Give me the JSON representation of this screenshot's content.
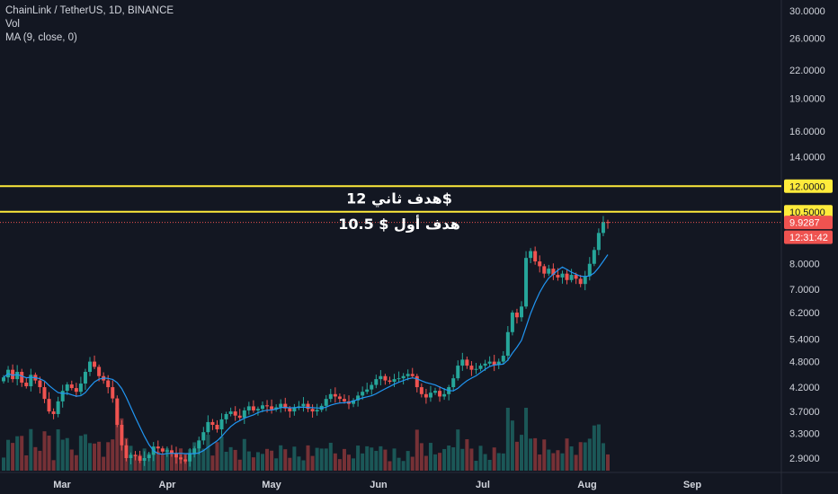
{
  "header": {
    "title": "ChainLink / TetherUS, 1D, BINANCE",
    "volume_label": "Vol",
    "ma_label": "MA (9, close, 0)"
  },
  "chart_data": {
    "type": "candlestick",
    "symbol": "ChainLink / TetherUS",
    "interval": "1D",
    "exchange": "BINANCE",
    "y_scale": "log",
    "ylim": [
      2.65,
      32.5
    ],
    "y_ticks": [
      "30.0000",
      "26.0000",
      "22.0000",
      "19.0000",
      "16.0000",
      "14.0000",
      "12.0000",
      "10.5000",
      "8.0000",
      "7.0000",
      "6.2000",
      "5.4000",
      "4.8000",
      "4.2000",
      "3.7000",
      "3.3000",
      "2.9000"
    ],
    "x_ticks": [
      "Mar",
      "Apr",
      "May",
      "Jun",
      "Jul",
      "Aug",
      "Sep"
    ],
    "last_price": "9.9287",
    "countdown": "12:31:42",
    "levels": [
      {
        "price": 12.0,
        "label": "12.0000",
        "annotation": "هدف ثاني 12$",
        "color": "#ffeb3b"
      },
      {
        "price": 10.5,
        "label": "10.5000",
        "annotation": "هدف أول $ 10.5",
        "color": "#ffeb3b"
      }
    ],
    "close_series": [
      4.42,
      4.6,
      4.38,
      4.55,
      4.3,
      4.22,
      4.48,
      4.35,
      4.2,
      3.95,
      3.7,
      3.65,
      3.9,
      4.12,
      4.26,
      4.18,
      4.1,
      4.28,
      4.55,
      4.8,
      4.67,
      4.45,
      4.35,
      4.2,
      3.96,
      3.45,
      3.1,
      2.9,
      2.95,
      2.93,
      2.86,
      2.9,
      2.95,
      3.08,
      3.05,
      3.0,
      3.02,
      2.97,
      2.91,
      2.88,
      2.85,
      2.96,
      3.05,
      3.18,
      3.32,
      3.5,
      3.45,
      3.37,
      3.55,
      3.65,
      3.7,
      3.62,
      3.58,
      3.72,
      3.8,
      3.72,
      3.75,
      3.82,
      3.8,
      3.74,
      3.78,
      3.85,
      3.76,
      3.7,
      3.77,
      3.8,
      3.85,
      3.75,
      3.7,
      3.73,
      3.81,
      3.95,
      4.05,
      4.0,
      3.95,
      3.9,
      3.85,
      3.92,
      4.02,
      4.1,
      4.15,
      4.25,
      4.38,
      4.45,
      4.35,
      4.32,
      4.38,
      4.4,
      4.45,
      4.5,
      4.45,
      4.2,
      4.05,
      3.98,
      4.08,
      4.12,
      4.0,
      4.05,
      4.2,
      4.4,
      4.7,
      4.85,
      4.7,
      4.6,
      4.62,
      4.7,
      4.75,
      4.8,
      4.72,
      4.8,
      4.95,
      5.6,
      6.2,
      6.05,
      6.4,
      8.25,
      8.55,
      8.1,
      7.9,
      7.6,
      7.8,
      7.55,
      7.45,
      7.6,
      7.35,
      7.55,
      7.4,
      7.2,
      7.5,
      8.0,
      8.6,
      9.4,
      9.95,
      9.93
    ]
  }
}
